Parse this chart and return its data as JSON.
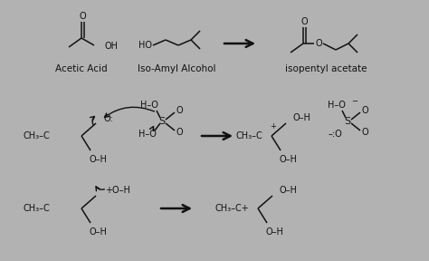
{
  "background_color": "#b2b2b2",
  "fig_width": 4.74,
  "fig_height": 2.88,
  "dpi": 100,
  "text_color": "#111111",
  "font_size": 7.0,
  "font_size_label": 7.5,
  "line_width": 1.1,
  "arrow_lw": 1.8,
  "labels": {
    "acetic_acid": "Acetic Acid",
    "iso_amyl": "Iso-Amyl Alcohol",
    "product": "isopentyl acetate"
  }
}
